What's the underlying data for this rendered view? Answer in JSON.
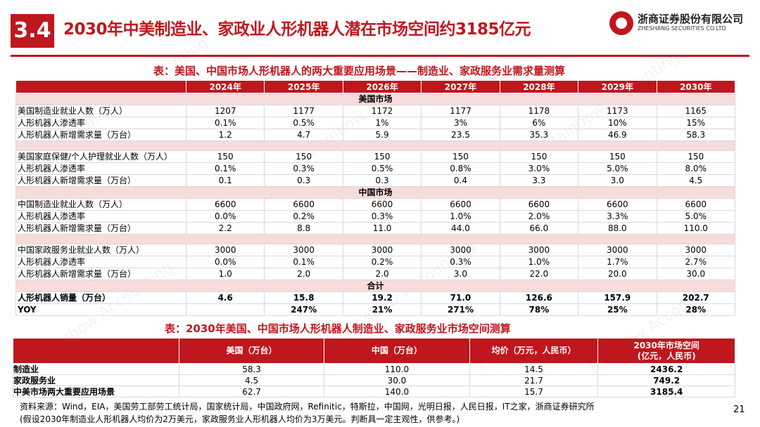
{
  "header": {
    "section_number": "3.4",
    "title": "2030年中美制造业、家政业人形机器人潜在市场空间约3185亿元",
    "logo_cn": "浙商证券股份有限公司",
    "logo_en": "ZHESHANG SECURITIES CO.LTD"
  },
  "table1": {
    "title": "表：美国、中国市场人形机器人的两大重要应用场景——制造业、家政服务业需求量测算",
    "years": [
      "2024年",
      "2025年",
      "2026年",
      "2027年",
      "2028年",
      "2029年",
      "2030年"
    ],
    "sections": {
      "us": "美国市场",
      "cn": "中国市场",
      "total": "合计"
    },
    "rows": [
      {
        "label": "美国制造业就业人数（万人）",
        "values": [
          "1207",
          "1177",
          "1172",
          "1177",
          "1178",
          "1173",
          "1165"
        ]
      },
      {
        "label": "人形机器人渗透率",
        "values": [
          "0.1%",
          "0.5%",
          "1%",
          "3%",
          "6%",
          "10%",
          "15%"
        ]
      },
      {
        "label": "人形机器人新增需求量（万台）",
        "values": [
          "1.2",
          "4.7",
          "5.9",
          "23.5",
          "35.3",
          "46.9",
          "58.3"
        ]
      },
      {
        "label": "美国家庭保健/个人护理就业人数（万人）",
        "values": [
          "150",
          "150",
          "150",
          "150",
          "150",
          "150",
          "150"
        ]
      },
      {
        "label": "人形机器人渗透率",
        "values": [
          "0.1%",
          "0.3%",
          "0.5%",
          "0.8%",
          "3.0%",
          "5.0%",
          "8.0%"
        ]
      },
      {
        "label": "人形机器人新增需求量（万台）",
        "values": [
          "0.1",
          "0.3",
          "0.3",
          "0.4",
          "3.3",
          "3.0",
          "4.5"
        ]
      },
      {
        "label": "中国制造业就业人数（万人）",
        "values": [
          "6600",
          "6600",
          "6600",
          "6600",
          "6600",
          "6600",
          "6600"
        ]
      },
      {
        "label": "人形机器人渗透率",
        "values": [
          "0.0%",
          "0.2%",
          "0.3%",
          "1.0%",
          "2.0%",
          "3.3%",
          "5.0%"
        ]
      },
      {
        "label": "人形机器人新增需求量（万台）",
        "values": [
          "2.2",
          "8.8",
          "11.0",
          "44.0",
          "66.0",
          "88.0",
          "110.0"
        ]
      },
      {
        "label": "中国家政服务业就业人数（万人）",
        "values": [
          "3000",
          "3000",
          "3000",
          "3000",
          "3000",
          "3000",
          "3000"
        ]
      },
      {
        "label": "人形机器人渗透率",
        "values": [
          "0.0%",
          "0.1%",
          "0.2%",
          "0.3%",
          "1.0%",
          "1.7%",
          "2.7%"
        ]
      },
      {
        "label": "人形机器人新增需求量（万台）",
        "values": [
          "1.0",
          "2.0",
          "2.0",
          "3.0",
          "22.0",
          "20.0",
          "30.0"
        ]
      },
      {
        "label": "人形机器人销量（万台）",
        "values": [
          "4.6",
          "15.8",
          "19.2",
          "71.0",
          "126.6",
          "157.9",
          "202.7"
        ]
      },
      {
        "label": "YOY",
        "values": [
          "",
          "247%",
          "21%",
          "271%",
          "78%",
          "25%",
          "28%"
        ]
      }
    ]
  },
  "table2": {
    "title": "表：2030年美国、中国市场人形机器人制造业、家政服务业市场空间测算",
    "headers": [
      "",
      "美国（万台）",
      "中国（万台）",
      "均价（万元，人民币）",
      "2030年市场空间",
      "(亿元，人民币)"
    ],
    "rows": [
      {
        "label": "制造业",
        "values": [
          "58.3",
          "110.0",
          "14.5",
          "2436.2"
        ]
      },
      {
        "label": "家政服务业",
        "values": [
          "4.5",
          "30.0",
          "21.7",
          "749.2"
        ]
      },
      {
        "label": "中美市场两大重要应用场景",
        "values": [
          "62.7",
          "140.0",
          "15.7",
          "3185.4"
        ]
      }
    ]
  },
  "footer": {
    "source_line1": "资料来源：Wind，EIA，美国劳工部劳工统计局，国家统计局，中国政府网，Refinitic，特斯拉，中国网，光明日报，人民日报，IT之家，浙商证券研究所",
    "source_line2": "(假设2030年制造业人形机器人均价为2万美元，家政服务业人形机器人均价为3万美元。判断具一定主观性，供参考。)",
    "page_number": "21"
  }
}
